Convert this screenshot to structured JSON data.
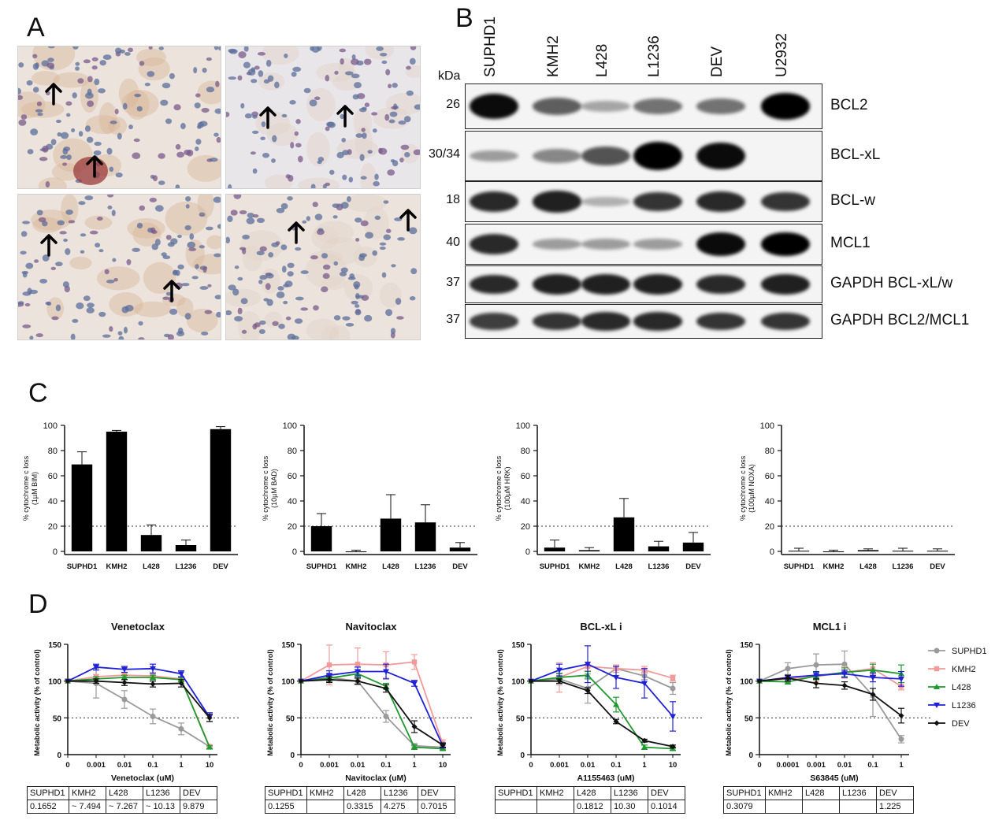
{
  "panels": {
    "a": "A",
    "b": "B",
    "c": "C",
    "d": "D"
  },
  "colors": {
    "SUPHD1": "#9a9a9a",
    "KMH2": "#f29a9a",
    "L428": "#1f9a2f",
    "L1236": "#2020d8",
    "DEV": "#111111",
    "bar": "#000000"
  },
  "blot": {
    "kda_header": "kDa",
    "lanes": [
      "SUPHD1",
      "KMH2",
      "L428",
      "L1236",
      "DEV",
      "U2932"
    ],
    "rows": [
      {
        "kda": "26",
        "label": "BCL2",
        "intensity": [
          0.95,
          0.55,
          0.2,
          0.45,
          0.45,
          1.0
        ]
      },
      {
        "kda": "30/34",
        "label": "BCL-xL",
        "intensity": [
          0.25,
          0.35,
          0.6,
          1.0,
          0.95,
          0.0
        ]
      },
      {
        "kda": "18",
        "label": "BCL-w",
        "intensity": [
          0.8,
          0.85,
          0.15,
          0.75,
          0.8,
          0.75
        ]
      },
      {
        "kda": "40",
        "label": "MCL1",
        "intensity": [
          0.8,
          0.25,
          0.25,
          0.25,
          0.95,
          1.0
        ]
      },
      {
        "kda": "37",
        "label": "GAPDH BCL-xL/w",
        "intensity": [
          0.8,
          0.85,
          0.85,
          0.85,
          0.8,
          0.85
        ]
      },
      {
        "kda": "37",
        "label": "GAPDH BCL2/MCL1",
        "intensity": [
          0.7,
          0.75,
          0.8,
          0.8,
          0.75,
          0.75
        ]
      }
    ]
  },
  "chart_data": [
    {
      "type": "bar",
      "ylabel": "% cytochrome c loss",
      "ylabel2": "(1µM BIM)",
      "categories": [
        "SUPHD1",
        "KMH2",
        "L428",
        "L1236",
        "DEV"
      ],
      "values": [
        69,
        95,
        13,
        5,
        97
      ],
      "errors": [
        10,
        1,
        8,
        4,
        2
      ],
      "ylim": [
        0,
        100
      ],
      "yticks": [
        "0",
        "20",
        "40",
        "60",
        "80",
        "100"
      ],
      "threshold": 20
    },
    {
      "type": "bar",
      "ylabel": "% cytochrome c loss",
      "ylabel2": "(10µM BAD)",
      "categories": [
        "SUPHD1",
        "KMH2",
        "L428",
        "L1236",
        "DEV"
      ],
      "values": [
        20,
        -1,
        26,
        23,
        3
      ],
      "errors": [
        10,
        2,
        19,
        14,
        4
      ],
      "ylim": [
        0,
        100
      ],
      "yticks": [
        "0",
        "20",
        "40",
        "60",
        "80",
        "100"
      ],
      "threshold": 20
    },
    {
      "type": "bar",
      "ylabel": "% cytochrome c loss",
      "ylabel2": "(100µM HRK)",
      "categories": [
        "SUPHD1",
        "KMH2",
        "L428",
        "L1236",
        "DEV"
      ],
      "values": [
        3,
        1,
        27,
        4,
        7
      ],
      "errors": [
        6,
        2,
        15,
        4,
        8
      ],
      "ylim": [
        0,
        100
      ],
      "yticks": [
        "0",
        "20",
        "40",
        "60",
        "80",
        "100"
      ],
      "threshold": 20
    },
    {
      "type": "bar",
      "ylabel": "% cytochrome c loss",
      "ylabel2": "(100µM NOXA)",
      "categories": [
        "SUPHD1",
        "KMH2",
        "L428",
        "L1236",
        "DEV"
      ],
      "values": [
        0.5,
        0,
        1,
        0.5,
        0.5
      ],
      "errors": [
        2,
        1,
        1,
        2,
        1.5
      ],
      "ylim": [
        0,
        100
      ],
      "yticks": [
        "0",
        "20",
        "40",
        "60",
        "80",
        "100"
      ],
      "threshold": 20
    },
    {
      "type": "line",
      "title": "Venetoclax",
      "xlabel": "Venetoclax (uM)",
      "ylabel": "Metabolic activity (% of control)",
      "x": [
        "0",
        "0.001",
        "0.01",
        "0.1",
        "1",
        "10"
      ],
      "yticks": [
        "0",
        "50",
        "100",
        "150"
      ],
      "ylim": [
        0,
        150
      ],
      "threshold": 50,
      "series": [
        {
          "name": "SUPHD1",
          "values": [
            100,
            97,
            75,
            52,
            35,
            11
          ],
          "errors": [
            0,
            20,
            12,
            10,
            8,
            2
          ]
        },
        {
          "name": "KMH2",
          "values": [
            100,
            106,
            108,
            107,
            103,
            11
          ],
          "errors": [
            0,
            3,
            3,
            4,
            3,
            2
          ]
        },
        {
          "name": "L428",
          "values": [
            100,
            103,
            105,
            105,
            102,
            10
          ],
          "errors": [
            0,
            3,
            3,
            3,
            3,
            2
          ]
        },
        {
          "name": "L1236",
          "values": [
            100,
            119,
            116,
            117,
            110,
            51
          ],
          "errors": [
            0,
            4,
            4,
            6,
            4,
            6
          ]
        },
        {
          "name": "DEV",
          "values": [
            100,
            100,
            98,
            96,
            97,
            50
          ],
          "errors": [
            0,
            3,
            4,
            4,
            5,
            5
          ]
        }
      ]
    },
    {
      "type": "line",
      "title": "Navitoclax",
      "xlabel": "Navitoclax (uM)",
      "ylabel": "Metabolic activity (% of control)",
      "x": [
        "0",
        "0.001",
        "0.01",
        "0.1",
        "1",
        "10"
      ],
      "yticks": [
        "0",
        "50",
        "100",
        "150"
      ],
      "ylim": [
        0,
        150
      ],
      "threshold": 50,
      "series": [
        {
          "name": "SUPHD1",
          "values": [
            100,
            105,
            100,
            52,
            12,
            10
          ],
          "errors": [
            0,
            5,
            5,
            8,
            3,
            3
          ]
        },
        {
          "name": "KMH2",
          "values": [
            100,
            122,
            123,
            122,
            126,
            15
          ],
          "errors": [
            0,
            27,
            22,
            18,
            10,
            5
          ]
        },
        {
          "name": "L428",
          "values": [
            100,
            104,
            110,
            93,
            10,
            8
          ],
          "errors": [
            0,
            5,
            5,
            4,
            3,
            2
          ]
        },
        {
          "name": "L1236",
          "values": [
            100,
            108,
            113,
            113,
            97,
            12
          ],
          "errors": [
            0,
            6,
            6,
            10,
            4,
            3
          ]
        },
        {
          "name": "DEV",
          "values": [
            100,
            102,
            100,
            90,
            38,
            13
          ],
          "errors": [
            0,
            4,
            4,
            5,
            8,
            3
          ]
        }
      ]
    },
    {
      "type": "line",
      "title": "BCL-xL i",
      "xlabel": "A1155463 (uM)",
      "ylabel": "Metabolic activity (% of control)",
      "x": [
        "0",
        "0.001",
        "0.01",
        "0.1",
        "1",
        "10"
      ],
      "yticks": [
        "0",
        "50",
        "100",
        "150"
      ],
      "ylim": [
        0,
        150
      ],
      "threshold": 50,
      "series": [
        {
          "name": "SUPHD1",
          "values": [
            100,
            103,
            90,
            117,
            107,
            90
          ],
          "errors": [
            0,
            8,
            20,
            5,
            5,
            8
          ]
        },
        {
          "name": "KMH2",
          "values": [
            100,
            105,
            120,
            117,
            115,
            104
          ],
          "errors": [
            0,
            20,
            6,
            5,
            5,
            4
          ]
        },
        {
          "name": "L428",
          "values": [
            100,
            105,
            108,
            68,
            10,
            8
          ],
          "errors": [
            0,
            5,
            5,
            10,
            3,
            2
          ]
        },
        {
          "name": "L1236",
          "values": [
            100,
            115,
            123,
            105,
            97,
            52
          ],
          "errors": [
            0,
            8,
            25,
            15,
            20,
            20
          ]
        },
        {
          "name": "DEV",
          "values": [
            100,
            100,
            87,
            45,
            19,
            11
          ],
          "errors": [
            0,
            3,
            4,
            3,
            2,
            2
          ]
        }
      ]
    },
    {
      "type": "line",
      "title": "MCL1 i",
      "xlabel": "S63845 (uM)",
      "ylabel": "Metabolic activity (% of control)",
      "x": [
        "0",
        "0.0001",
        "0.001",
        "0.01",
        "0.1",
        "1"
      ],
      "yticks": [
        "0",
        "50",
        "100",
        "150"
      ],
      "ylim": [
        0,
        150
      ],
      "threshold": 50,
      "series": [
        {
          "name": "SUPHD1",
          "values": [
            100,
            117,
            122,
            123,
            80,
            21
          ],
          "errors": [
            0,
            8,
            15,
            18,
            28,
            5
          ]
        },
        {
          "name": "KMH2",
          "values": [
            100,
            103,
            106,
            112,
            117,
            93
          ],
          "errors": [
            0,
            5,
            6,
            8,
            8,
            5
          ]
        },
        {
          "name": "L428",
          "values": [
            100,
            99,
            107,
            112,
            115,
            110
          ],
          "errors": [
            0,
            3,
            5,
            6,
            8,
            12
          ]
        },
        {
          "name": "L1236",
          "values": [
            100,
            105,
            108,
            110,
            105,
            103
          ],
          "errors": [
            0,
            3,
            5,
            5,
            6,
            10
          ]
        },
        {
          "name": "DEV",
          "values": [
            100,
            104,
            97,
            94,
            82,
            53
          ],
          "errors": [
            0,
            4,
            6,
            5,
            8,
            10
          ]
        }
      ]
    }
  ],
  "legend": [
    "SUPHD1",
    "KMH2",
    "L428",
    "L1236",
    "DEV"
  ],
  "tables": [
    {
      "header": [
        "SUPHD1",
        "KMH2",
        "L428",
        "L1236",
        "DEV"
      ],
      "row": [
        "0.1652",
        "~ 7.494",
        "~ 7.267",
        "~ 10.13",
        "9.879"
      ]
    },
    {
      "header": [
        "SUPHD1",
        "KMH2",
        "L428",
        "L1236",
        "DEV"
      ],
      "row": [
        "0.1255",
        "",
        "0.3315",
        "4.275",
        "0.7015"
      ]
    },
    {
      "header": [
        "SUPHD1",
        "KMH2",
        "L428",
        "L1236",
        "DEV"
      ],
      "row": [
        "",
        "",
        "0.1812",
        "10.30",
        "0.1014"
      ]
    },
    {
      "header": [
        "SUPHD1",
        "KMH2",
        "L428",
        "L1236",
        "DEV"
      ],
      "row": [
        "0.3079",
        "",
        "",
        "",
        "1.225"
      ]
    }
  ]
}
